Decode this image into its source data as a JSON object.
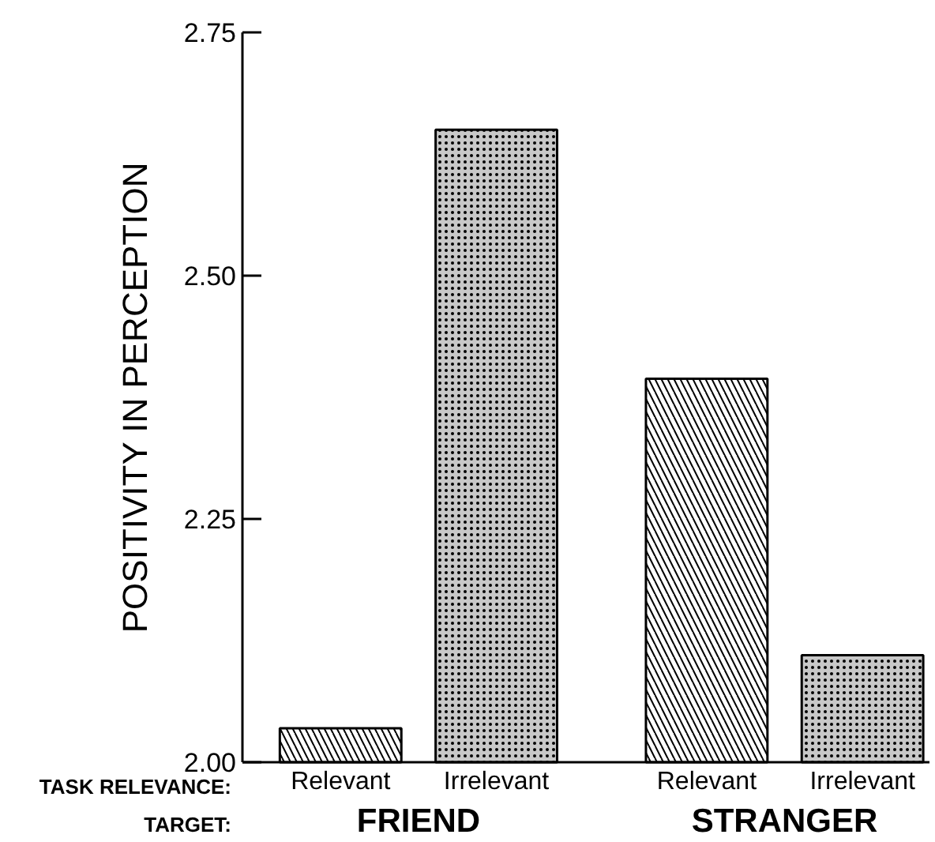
{
  "chart_data": {
    "type": "bar",
    "ylabel": "POSITIVITY IN PERCEPTION",
    "categories": [
      "Relevant",
      "Irrelevant",
      "Relevant",
      "Irrelevant"
    ],
    "values": [
      2.035,
      2.65,
      2.394,
      2.11
    ],
    "colors": [
      "#ffffff",
      "#c8c8c8",
      "#ffffff",
      "#c8c8c8"
    ],
    "ylim": [
      2.0,
      2.75
    ],
    "yticks": [
      {
        "value": 2.0,
        "label": "2.00"
      },
      {
        "value": 2.25,
        "label": "2.25"
      },
      {
        "value": 2.5,
        "label": "2.50"
      },
      {
        "value": 2.75,
        "label": "2.75"
      }
    ],
    "annotations": [
      "TASK RELEVANCE:",
      "TARGET:",
      "FRIEND",
      "STRANGER"
    ],
    "grid": false
  }
}
